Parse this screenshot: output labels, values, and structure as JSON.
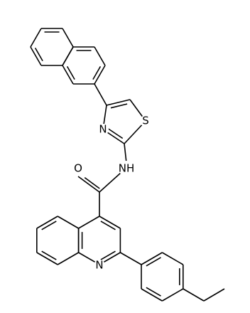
{
  "atoms": [
    {
      "label": "O"
    },
    {
      "label": "NH"
    },
    {
      "label": "N"
    },
    {
      "label": "S"
    },
    {
      "label": "N"
    }
  ]
}
